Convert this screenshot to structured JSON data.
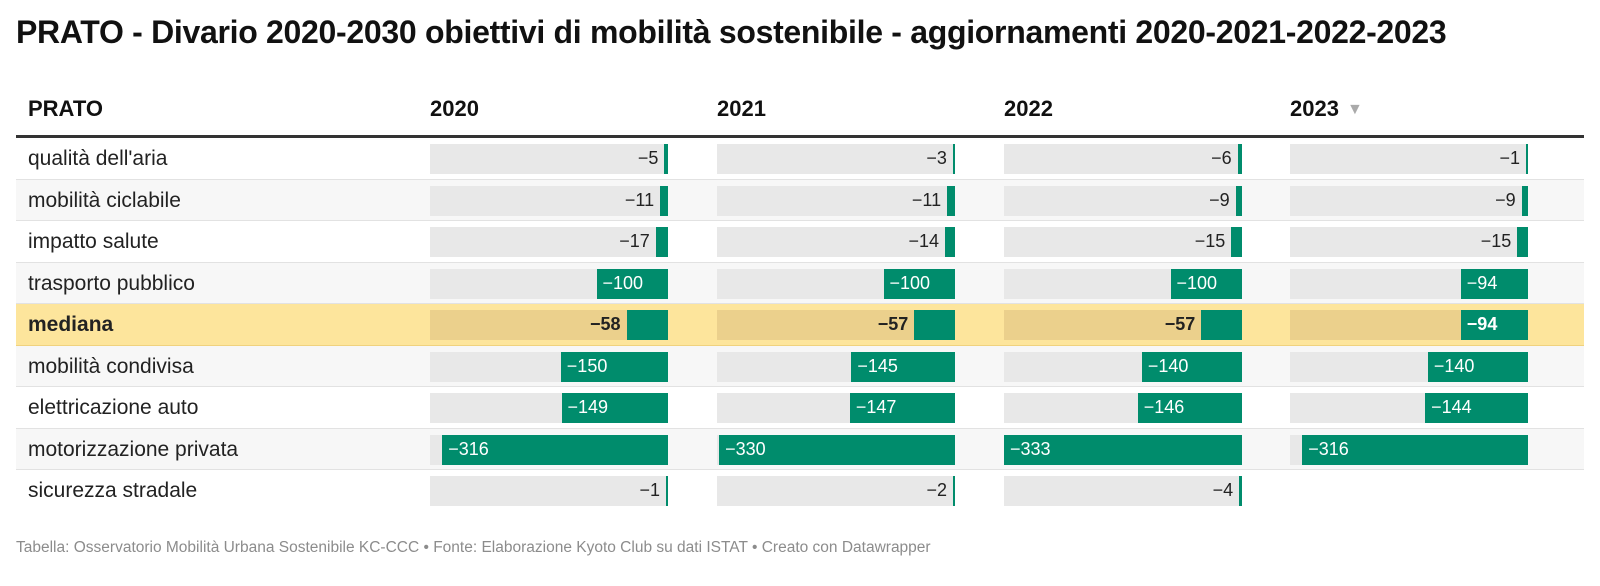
{
  "title": "PRATO - Divario 2020-2030 obiettivi di mobilità sostenibile - aggiornamenti 2020-2021-2022-2023",
  "footer": "Tabella: Osservatorio Mobilità Urbana Sostenibile KC-CCC • Fonte: Elaborazione Kyoto Club su dati ISTAT • Creato con Datawrapper",
  "colors": {
    "bar": "#008c6c",
    "cell_background": "#e8e8e8",
    "highlight_row": "#fde59c",
    "sort_icon": "#aaaaaa"
  },
  "chart_data": {
    "type": "table",
    "row_header": "PRATO",
    "columns": [
      "2020",
      "2021",
      "2022",
      "2023"
    ],
    "sorted_column": "2023",
    "sort_direction": "descending",
    "icons": {
      "sort": "triangle-down-icon"
    },
    "value_max_abs": 333,
    "rows": [
      {
        "label": "qualità dell'aria",
        "values": [
          -5,
          -3,
          -6,
          -1
        ],
        "texts": [
          "−5",
          "−3",
          "−6",
          "−1"
        ],
        "highlight": false
      },
      {
        "label": "mobilità ciclabile",
        "values": [
          -11,
          -11,
          -9,
          -9
        ],
        "texts": [
          "−11",
          "−11",
          "−9",
          "−9"
        ],
        "highlight": false
      },
      {
        "label": "impatto salute",
        "values": [
          -17,
          -14,
          -15,
          -15
        ],
        "texts": [
          "−17",
          "−14",
          "−15",
          "−15"
        ],
        "highlight": false
      },
      {
        "label": "trasporto pubblico",
        "values": [
          -100,
          -100,
          -100,
          -94
        ],
        "texts": [
          "−100",
          "−100",
          "−100",
          "−94"
        ],
        "highlight": false
      },
      {
        "label": "mediana",
        "values": [
          -58,
          -57,
          -57,
          -94
        ],
        "texts": [
          "−58",
          "−57",
          "−57",
          "−94"
        ],
        "highlight": true
      },
      {
        "label": "mobilità condivisa",
        "values": [
          -150,
          -145,
          -140,
          -140
        ],
        "texts": [
          "−150",
          "−145",
          "−140",
          "−140"
        ],
        "highlight": false
      },
      {
        "label": "elettricazione auto",
        "values": [
          -149,
          -147,
          -146,
          -144
        ],
        "texts": [
          "−149",
          "−147",
          "−146",
          "−144"
        ],
        "highlight": false
      },
      {
        "label": "motorizzazione privata",
        "values": [
          -316,
          -330,
          -333,
          -316
        ],
        "texts": [
          "−316",
          "−330",
          "−333",
          "−316"
        ],
        "highlight": false
      },
      {
        "label": "sicurezza stradale",
        "values": [
          -1,
          -2,
          -4,
          null
        ],
        "texts": [
          "−1",
          "−2",
          "−4",
          ""
        ],
        "highlight": false
      }
    ]
  }
}
